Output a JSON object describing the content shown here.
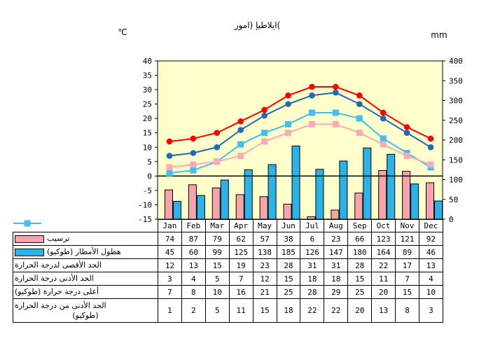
{
  "chart_data": {
    "type": "bar+line",
    "title": "روما) إيطاليا(",
    "categories": [
      "Jan",
      "Feb",
      "Mar",
      "Apr",
      "May",
      "Jun",
      "Jul",
      "Aug",
      "Sep",
      "Oct",
      "Nov",
      "Dec"
    ],
    "ylabel_left": "℃",
    "ylabel_right": "mm",
    "ylim_left": [
      -15,
      40
    ],
    "ytick_step_left": 5,
    "ylim_right": [
      0,
      400
    ],
    "ytick_step_right": 50,
    "plot_background": "#FFFFCC",
    "grid": false,
    "legend_position": "table-below-left",
    "series": [
      {
        "name": "ترسيب",
        "type": "bar",
        "color": "#F5A3AC",
        "values": [
          74,
          87,
          79,
          62,
          57,
          38,
          6,
          23,
          66,
          123,
          121,
          92
        ]
      },
      {
        "name": "هطول الأمطار (طوكيو)",
        "type": "bar",
        "color": "#29B3E8",
        "values": [
          45,
          60,
          99,
          125,
          138,
          185,
          126,
          147,
          180,
          164,
          89,
          46
        ]
      },
      {
        "name": "الحد الأقصى لدرجة الحرارة",
        "type": "line",
        "marker": "circle",
        "color": "#FF0000",
        "values": [
          12,
          13,
          15,
          19,
          23,
          28,
          31,
          31,
          28,
          22,
          17,
          13
        ]
      },
      {
        "name": "الحد الأدنى درجة الحرارة",
        "type": "line",
        "marker": "square",
        "color": "#F9ACB6",
        "values": [
          3,
          4,
          5,
          7,
          12,
          15,
          18,
          18,
          15,
          11,
          7,
          4
        ]
      },
      {
        "name": "أعلى درجة حرارة (طوكيو)",
        "type": "line",
        "marker": "circle",
        "color": "#2268B8",
        "values": [
          7,
          8,
          10,
          16,
          21,
          25,
          28,
          29,
          25,
          20,
          15,
          10
        ]
      },
      {
        "name": "الحد الأدنى من درجة الحرارة",
        "name_line2": "(طوكيو)",
        "type": "line",
        "marker": "square",
        "color": "#3FC0F0",
        "values": [
          1,
          2,
          5,
          11,
          15,
          18,
          22,
          22,
          20,
          13,
          8,
          3
        ]
      }
    ]
  }
}
